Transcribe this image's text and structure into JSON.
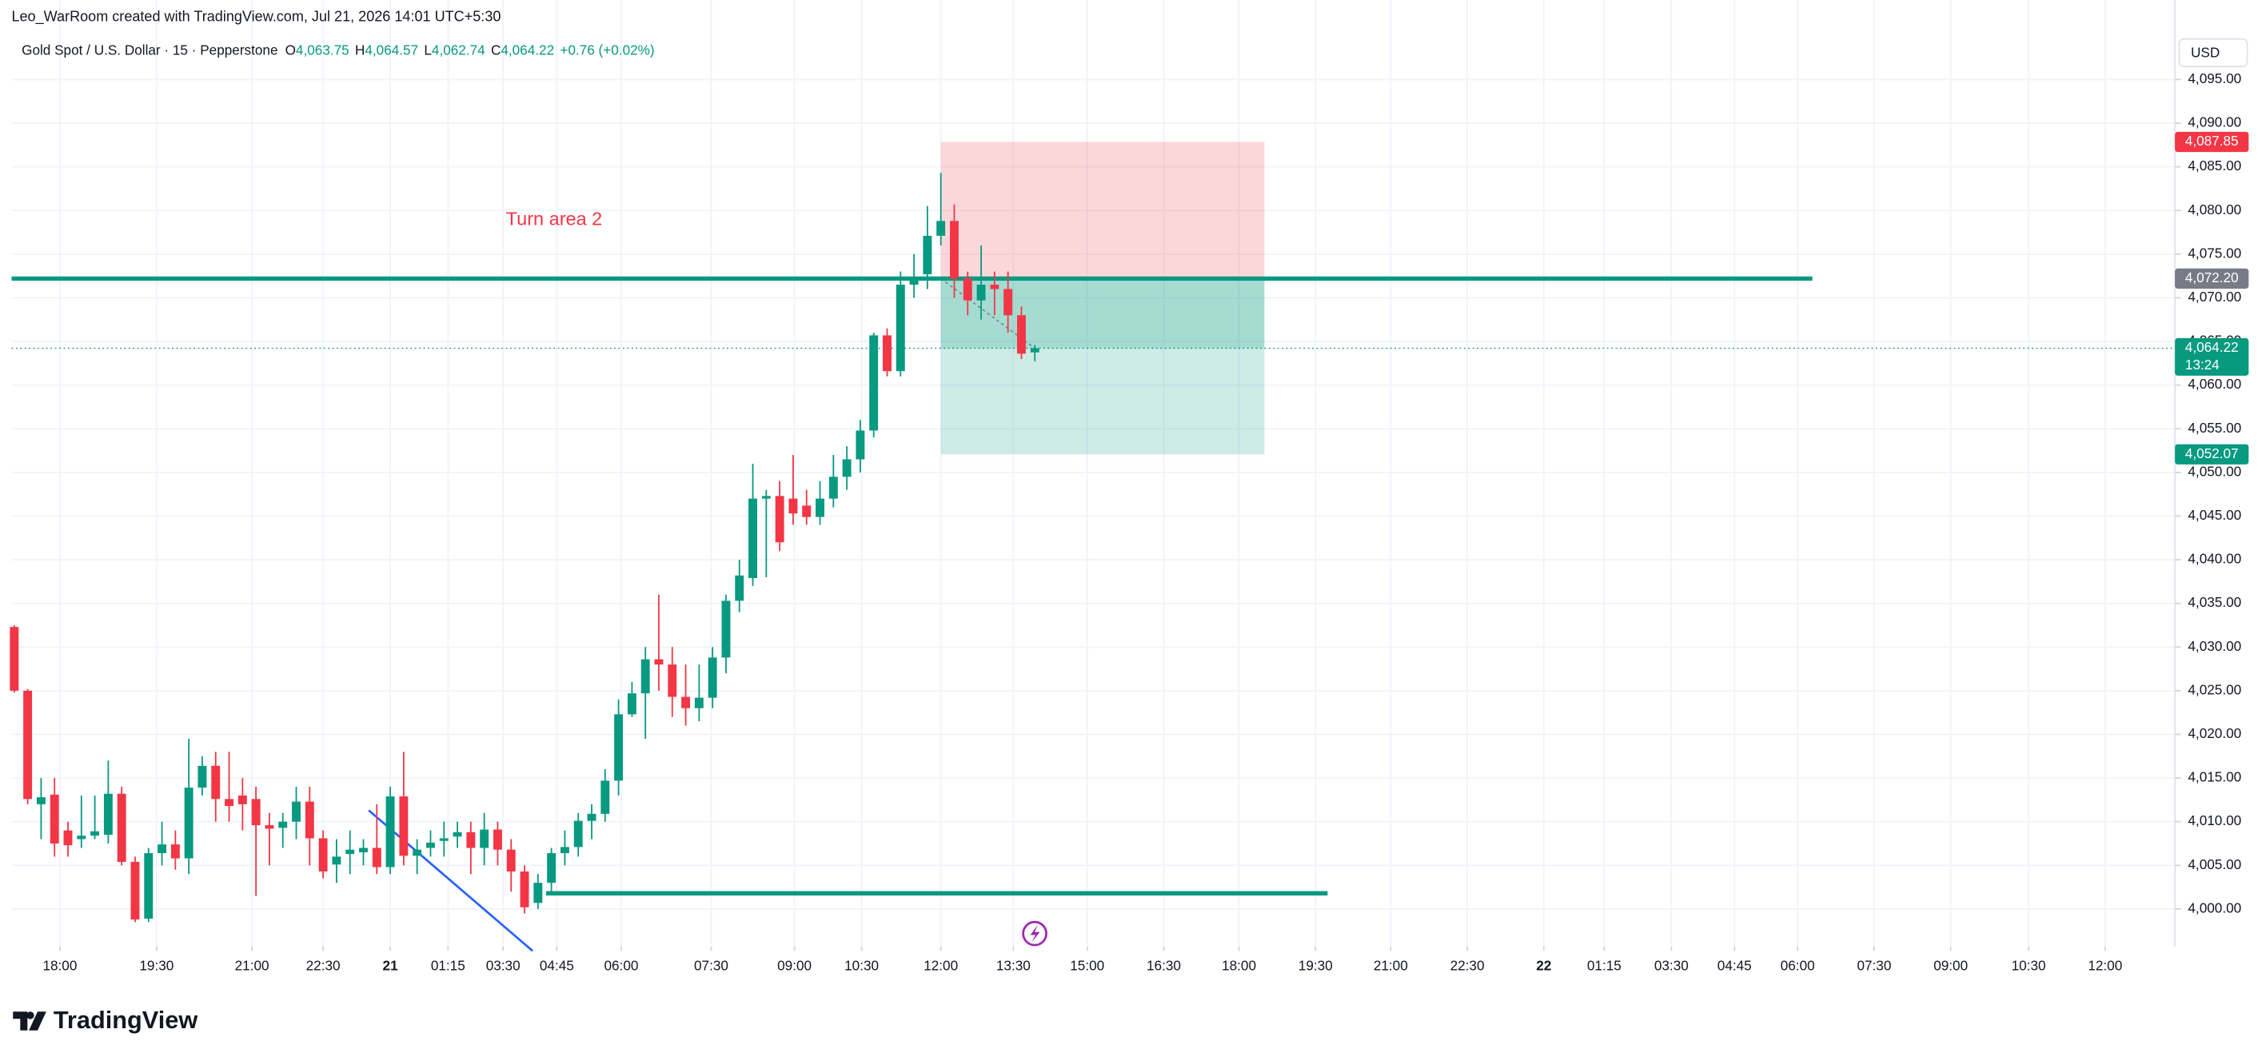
{
  "header": {
    "credit": "Leo_WarRoom created with TradingView.com, Jul 21, 2026 14:01 UTC+5:30",
    "symbol": "Gold Spot / U.S. Dollar · 15 · Pepperstone",
    "ohlc": [
      {
        "key": "O",
        "value": "4,063.75"
      },
      {
        "key": "H",
        "value": "4,064.57"
      },
      {
        "key": "L",
        "value": "4,062.74"
      },
      {
        "key": "C",
        "value": "4,064.22"
      }
    ],
    "change": "+0.76 (+0.02%)",
    "currency": "USD"
  },
  "footer": {
    "logo": "TradingView"
  },
  "chart_data": {
    "type": "candlestick",
    "up_color": "#089981",
    "down_color": "#f23645",
    "grid": true,
    "open": [
      4032.3,
      4025.0,
      4012.0,
      4013.1,
      4009.0,
      4008.0,
      4008.4,
      4008.5,
      4013.2,
      4005.4,
      3998.9,
      4006.4,
      4007.4,
      4005.8,
      4013.9,
      4016.4,
      4012.6,
      4013.0,
      4012.6,
      4009.6,
      4009.3,
      4010.0,
      4012.3,
      4008.1,
      4005.1,
      4006.3,
      4006.5,
      4007.0,
      4004.8,
      4012.9,
      4006.1,
      4007.0,
      4007.8,
      4008.3,
      4008.8,
      4007.0,
      4009.1,
      4006.8,
      4004.3,
      4000.7,
      4003.0,
      4006.4,
      4007.1,
      4010.1,
      4010.9,
      4014.7,
      4022.3,
      4024.7,
      4028.6,
      4028.0,
      4024.3,
      4023.0,
      4024.2,
      4028.8,
      4035.3,
      4037.9,
      4047.0,
      4047.3,
      4047.0,
      4046.2,
      4044.9,
      4047.0,
      4049.5,
      4051.5,
      4054.8,
      4065.7,
      4061.6,
      4071.5,
      4072.7,
      4077.1,
      4078.8,
      4072.2,
      4069.7,
      4071.5,
      4071.0,
      4068.0,
      4063.75
    ],
    "high": [
      4032.5,
      4025.2,
      4015.0,
      4015.0,
      4010.0,
      4013.0,
      4013.0,
      4017.0,
      4014.0,
      4006.0,
      4007.0,
      4010.0,
      4009.0,
      4019.5,
      4017.5,
      4018.0,
      4018.0,
      4015.0,
      4014.0,
      4011.0,
      4011.0,
      4014.0,
      4014.0,
      4009.0,
      4008.0,
      4009.0,
      4008.0,
      4012.0,
      4014.0,
      4018.0,
      4008.0,
      4009.0,
      4010.0,
      4010.0,
      4010.0,
      4011.0,
      4010.0,
      4008.0,
      4005.0,
      4004.0,
      4007.0,
      4009.0,
      4011.0,
      4012.0,
      4016.0,
      4024.0,
      4026.0,
      4030.0,
      4036.0,
      4030.0,
      4028.0,
      4028.0,
      4030.0,
      4036.0,
      4040.0,
      4051.0,
      4048.0,
      4049.0,
      4052.0,
      4048.0,
      4049.0,
      4052.0,
      4053.0,
      4056.0,
      4066.0,
      4066.5,
      4073.0,
      4075.0,
      4080.5,
      4084.3,
      4080.7,
      4073.0,
      4076.0,
      4073.0,
      4073.0,
      4069.0,
      4064.57
    ],
    "low": [
      4024.8,
      4012.0,
      4008.0,
      4006.0,
      4006.0,
      4007.0,
      4008.0,
      4007.5,
      4005.0,
      3998.5,
      3998.5,
      4005.0,
      4004.5,
      4004.0,
      4013.0,
      4010.0,
      4010.0,
      4009.0,
      4001.5,
      4005.0,
      4007.0,
      4008.0,
      4005.0,
      4003.5,
      4003.0,
      4004.0,
      4005.0,
      4004.0,
      4004.0,
      4005.0,
      4004.0,
      4006.0,
      4006.0,
      4007.0,
      4004.0,
      4005.0,
      4005.0,
      4002.0,
      3999.5,
      4000.0,
      4002.0,
      4005.0,
      4006.0,
      4008.0,
      4010.0,
      4013.0,
      4022.0,
      4019.5,
      4025.0,
      4022.0,
      4021.0,
      4021.5,
      4023.0,
      4027.0,
      4034.0,
      4037.0,
      4038.0,
      4041.0,
      4044.0,
      4044.0,
      4044.0,
      4046.0,
      4048.0,
      4050.0,
      4054.0,
      4061.0,
      4061.0,
      4070.0,
      4071.0,
      4076.0,
      4070.0,
      4068.0,
      4067.5,
      4068.0,
      4066.0,
      4063.0,
      4062.74
    ],
    "close": [
      4025.0,
      4012.6,
      4012.8,
      4007.5,
      4007.3,
      4008.4,
      4008.9,
      4013.2,
      4005.4,
      3998.8,
      4006.4,
      4007.4,
      4005.8,
      4013.9,
      4016.4,
      4012.6,
      4011.8,
      4012.0,
      4009.6,
      4009.2,
      4010.0,
      4012.3,
      4008.1,
      4004.3,
      4006.0,
      4006.8,
      4007.0,
      4004.8,
      4012.9,
      4006.1,
      4006.8,
      4007.6,
      4008.1,
      4008.8,
      4007.0,
      4009.1,
      4006.8,
      4004.3,
      4000.2,
      4003.0,
      4006.4,
      4007.1,
      4010.1,
      4010.9,
      4014.7,
      4022.3,
      4024.7,
      4028.6,
      4028.0,
      4024.3,
      4023.0,
      4024.2,
      4028.8,
      4035.3,
      4038.2,
      4047.0,
      4047.3,
      4042.0,
      4045.3,
      4044.9,
      4047.0,
      4049.5,
      4051.5,
      4054.8,
      4065.7,
      4061.6,
      4071.5,
      4072.2,
      4077.1,
      4078.8,
      4072.2,
      4069.7,
      4071.5,
      4071.0,
      4068.0,
      4063.6,
      4064.22
    ],
    "xlim": [
      -0.2,
      160.9
    ],
    "xticks": [
      {
        "value": 3.4,
        "label": "18:00"
      },
      {
        "value": 10.6,
        "label": "19:30"
      },
      {
        "value": 17.7,
        "label": "21:00"
      },
      {
        "value": 23.0,
        "label": "22:30"
      },
      {
        "value": 28.0,
        "label": "21"
      },
      {
        "value": 32.3,
        "label": "01:15"
      },
      {
        "value": 36.4,
        "label": "03:30"
      },
      {
        "value": 40.4,
        "label": "04:45"
      },
      {
        "value": 45.2,
        "label": "06:00"
      },
      {
        "value": 51.9,
        "label": "07:30"
      },
      {
        "value": 58.1,
        "label": "09:00"
      },
      {
        "value": 63.1,
        "label": "10:30"
      },
      {
        "value": 69.0,
        "label": "12:00"
      },
      {
        "value": 74.4,
        "label": "13:30"
      },
      {
        "value": 79.9,
        "label": "15:00"
      },
      {
        "value": 85.6,
        "label": "16:30"
      },
      {
        "value": 91.2,
        "label": "18:00"
      },
      {
        "value": 96.9,
        "label": "19:30"
      },
      {
        "value": 102.5,
        "label": "21:00"
      },
      {
        "value": 108.2,
        "label": "22:30"
      },
      {
        "value": 113.9,
        "label": "22"
      },
      {
        "value": 118.4,
        "label": "01:15"
      },
      {
        "value": 123.4,
        "label": "03:30"
      },
      {
        "value": 128.1,
        "label": "04:45"
      },
      {
        "value": 132.8,
        "label": "06:00"
      },
      {
        "value": 138.5,
        "label": "07:30"
      },
      {
        "value": 144.2,
        "label": "09:00"
      },
      {
        "value": 150.0,
        "label": "10:30"
      },
      {
        "value": 155.7,
        "label": "12:00"
      }
    ],
    "ylim": [
      3995.7,
      4104.1
    ],
    "yticks": [
      {
        "value": 4000,
        "label": "4,000.00"
      },
      {
        "value": 4005,
        "label": "4,005.00"
      },
      {
        "value": 4010,
        "label": "4,010.00"
      },
      {
        "value": 4015,
        "label": "4,015.00"
      },
      {
        "value": 4020,
        "label": "4,020.00"
      },
      {
        "value": 4025,
        "label": "4,025.00"
      },
      {
        "value": 4030,
        "label": "4,030.00"
      },
      {
        "value": 4035,
        "label": "4,035.00"
      },
      {
        "value": 4040,
        "label": "4,040.00"
      },
      {
        "value": 4045,
        "label": "4,045.00"
      },
      {
        "value": 4050,
        "label": "4,050.00"
      },
      {
        "value": 4055,
        "label": "4,055.00"
      },
      {
        "value": 4060,
        "label": "4,060.00"
      },
      {
        "value": 4065,
        "label": "4,065.00"
      },
      {
        "value": 4070,
        "label": "4,070.00"
      },
      {
        "value": 4075,
        "label": "4,075.00"
      },
      {
        "value": 4080,
        "label": "4,080.00"
      },
      {
        "value": 4085,
        "label": "4,085.00"
      },
      {
        "value": 4090,
        "label": "4,090.00"
      },
      {
        "value": 4095,
        "label": "4,095.00"
      }
    ],
    "current_price": 4064.22,
    "price_labels": [
      {
        "value": 4087.85,
        "label": "4,087.85",
        "color": "#f23645"
      },
      {
        "value": 4072.2,
        "label": "4,072.20",
        "color": "#787b86"
      },
      {
        "value": 4064.22,
        "label": "4,064.22",
        "color": "#089981",
        "countdown": "13:24"
      },
      {
        "value": 4052.07,
        "label": "4,052.07",
        "color": "#089981"
      }
    ],
    "hlines": [
      {
        "value": 4072.2,
        "x": [
          -0.2,
          133.9
        ],
        "color": "#089981"
      },
      {
        "value": 4001.8,
        "x": [
          39.6,
          97.8
        ],
        "color": "#089981"
      }
    ],
    "trendline": {
      "x": [
        26.4,
        38.6
      ],
      "y": [
        4011.3,
        3995.2
      ],
      "color": "#2962ff"
    },
    "position": {
      "x": [
        69.0,
        93.1
      ],
      "stop": 4087.85,
      "entry": 4072.2,
      "target": 4052.07
    },
    "annotation": {
      "text": "Turn area 2",
      "x": 40.2,
      "y": 4078.9,
      "color": "#f23645"
    }
  }
}
